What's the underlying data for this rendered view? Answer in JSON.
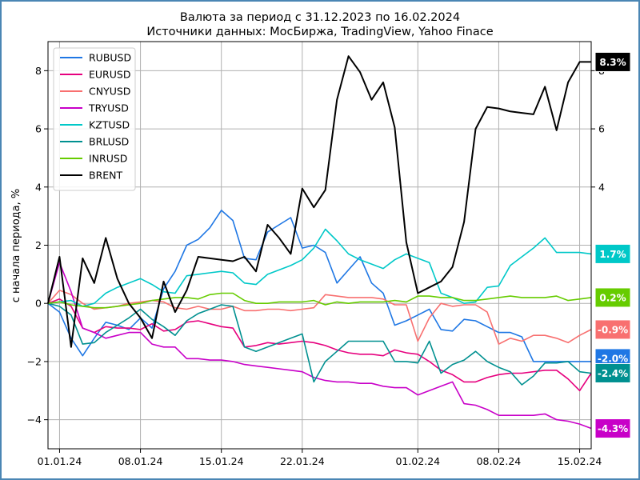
{
  "chart_data": {
    "type": "line",
    "title": "Валюта за период с 31.12.2023 по 16.02.2024",
    "subtitle": "Источники данных: МосБиржа, TradingView, Yahoo Finace",
    "xlabel": "",
    "ylabel": "с начала периода, %",
    "ylim": [
      -5,
      9
    ],
    "yticks": [
      -4,
      -2,
      0,
      2,
      4,
      6,
      8
    ],
    "ytick_labels": [
      "−4",
      "−2",
      "0",
      "2",
      "4",
      "6",
      "8"
    ],
    "right_yticks": [
      4,
      6,
      8
    ],
    "right_ytick_labels": [
      "4",
      "6",
      "8"
    ],
    "grid": true,
    "legend_position": "top-left",
    "x_days": [
      0,
      0.5,
      1,
      1.5,
      2,
      2.5,
      3,
      3.5,
      4,
      4.5,
      5,
      5.5,
      6,
      6.5,
      7,
      7.5,
      8,
      8.5,
      9,
      9.5,
      10,
      10.5,
      11,
      11.5,
      12,
      12.5,
      13,
      13.5,
      14,
      14.5,
      15,
      15.5,
      16,
      16.5,
      17,
      17.5,
      18,
      18.5,
      19,
      19.5,
      20,
      20.5,
      21,
      21.5,
      22,
      22.5,
      23,
      23.5,
      24,
      24.5,
      25,
      25.5,
      26,
      26.5,
      27,
      27.5,
      28,
      28.5,
      29,
      29.5,
      30,
      30.5,
      31,
      31.5,
      32,
      32.5,
      33,
      33.5,
      34,
      34.5,
      35,
      35.5,
      36,
      36.5,
      37,
      37.5,
      38,
      38.5,
      39,
      39.5,
      40,
      40.5,
      41,
      41.5,
      42,
      42.5,
      43,
      43.5,
      44,
      44.5,
      45,
      45.5,
      46,
      46.5,
      47
    ],
    "xticks": [
      1,
      8,
      15,
      22,
      32,
      39,
      46
    ],
    "xtick_labels": [
      "01.01.24",
      "08.01.24",
      "15.01.24",
      "22.01.24",
      "01.02.24",
      "08.02.24",
      "15.02.24"
    ],
    "series": [
      {
        "name": "RUBUSD",
        "color": "#1f77e4",
        "last_label": "-2.0%",
        "x": [
          0,
          1,
          2,
          3,
          4,
          5,
          6,
          7,
          8,
          9,
          10,
          11,
          12,
          13,
          14,
          15,
          16,
          17,
          18,
          19,
          20,
          21,
          22,
          23,
          24,
          25,
          26,
          27,
          28,
          29,
          30,
          31,
          32,
          33,
          34,
          35,
          36,
          37,
          38,
          39,
          40,
          41,
          42,
          43,
          44,
          45,
          46,
          47
        ],
        "values": [
          0,
          -0.3,
          -1.2,
          -1.8,
          -1.2,
          -0.65,
          -0.75,
          -0.9,
          -0.5,
          -0.85,
          0.5,
          1.1,
          2.0,
          2.2,
          2.6,
          3.2,
          2.85,
          1.55,
          1.5,
          2.45,
          2.7,
          2.95,
          1.9,
          2.0,
          1.75,
          0.7,
          1.15,
          1.6,
          0.7,
          0.35,
          -0.75,
          -0.6,
          -0.4,
          -0.2,
          -0.9,
          -0.95,
          -0.55,
          -0.6,
          -0.8,
          -1.0,
          -1.0,
          -1.15,
          -2.0,
          -2.0,
          -2.0,
          -2.0,
          -2.0,
          -2.0
        ]
      },
      {
        "name": "EURUSD",
        "color": "#e6007e",
        "last_label": "-2.4%",
        "x": [
          0,
          1,
          2,
          3,
          4,
          5,
          6,
          7,
          8,
          9,
          10,
          11,
          12,
          13,
          14,
          15,
          16,
          17,
          18,
          19,
          20,
          21,
          22,
          23,
          24,
          25,
          26,
          27,
          28,
          29,
          30,
          31,
          32,
          33,
          34,
          35,
          36,
          37,
          38,
          39,
          40,
          41,
          42,
          43,
          44,
          45,
          46,
          47
        ],
        "values": [
          0,
          0.15,
          -0.1,
          -0.85,
          -1.0,
          -0.8,
          -0.85,
          -0.85,
          -0.9,
          -0.7,
          -0.95,
          -0.9,
          -0.65,
          -0.6,
          -0.7,
          -0.8,
          -0.85,
          -1.5,
          -1.45,
          -1.35,
          -1.4,
          -1.35,
          -1.3,
          -1.35,
          -1.45,
          -1.6,
          -1.7,
          -1.75,
          -1.75,
          -1.8,
          -1.6,
          -1.7,
          -1.75,
          -2.0,
          -2.3,
          -2.45,
          -2.7,
          -2.7,
          -2.55,
          -2.45,
          -2.4,
          -2.4,
          -2.35,
          -2.3,
          -2.3,
          -2.6,
          -3.0,
          -2.4
        ]
      },
      {
        "name": "CNYUSD",
        "color": "#f87070",
        "last_label": "-0.9%",
        "x": [
          0,
          1,
          2,
          3,
          4,
          5,
          6,
          7,
          8,
          9,
          10,
          11,
          12,
          13,
          14,
          15,
          16,
          17,
          18,
          19,
          20,
          21,
          22,
          23,
          24,
          25,
          26,
          27,
          28,
          29,
          30,
          31,
          32,
          33,
          34,
          35,
          36,
          37,
          38,
          39,
          40,
          41,
          42,
          43,
          44,
          45,
          46,
          47
        ],
        "values": [
          0,
          0.45,
          0.3,
          0.0,
          -0.2,
          -0.15,
          -0.1,
          0.0,
          0.05,
          0.1,
          0.05,
          -0.15,
          -0.2,
          -0.1,
          -0.2,
          -0.2,
          -0.1,
          -0.25,
          -0.25,
          -0.2,
          -0.2,
          -0.25,
          -0.2,
          -0.15,
          0.3,
          0.25,
          0.2,
          0.2,
          0.2,
          0.15,
          -0.05,
          -0.05,
          -1.3,
          -0.5,
          0.0,
          -0.1,
          -0.05,
          -0.05,
          -0.3,
          -1.4,
          -1.2,
          -1.3,
          -1.1,
          -1.1,
          -1.2,
          -1.35,
          -1.1,
          -0.9
        ]
      },
      {
        "name": "TRYUSD",
        "color": "#c800c8",
        "last_label": "-4.3%",
        "x": [
          0,
          1,
          2,
          3,
          4,
          5,
          6,
          7,
          8,
          9,
          10,
          11,
          12,
          13,
          14,
          15,
          16,
          17,
          18,
          19,
          20,
          21,
          22,
          23,
          24,
          25,
          26,
          27,
          28,
          29,
          30,
          31,
          32,
          33,
          34,
          35,
          36,
          37,
          38,
          39,
          40,
          41,
          42,
          43,
          44,
          45,
          46,
          47
        ],
        "values": [
          0,
          1.4,
          0.4,
          -0.85,
          -1.0,
          -1.2,
          -1.1,
          -1.0,
          -1.0,
          -1.4,
          -1.5,
          -1.5,
          -1.9,
          -1.9,
          -1.95,
          -1.95,
          -2.0,
          -2.1,
          -2.15,
          -2.2,
          -2.25,
          -2.3,
          -2.35,
          -2.55,
          -2.65,
          -2.7,
          -2.7,
          -2.75,
          -2.75,
          -2.85,
          -2.9,
          -2.9,
          -3.15,
          -3.0,
          -2.85,
          -2.7,
          -3.45,
          -3.5,
          -3.65,
          -3.85,
          -3.85,
          -3.85,
          -3.85,
          -3.8,
          -4.0,
          -4.05,
          -4.15,
          -4.3
        ]
      },
      {
        "name": "KZTUSD",
        "color": "#00c8c8",
        "last_label": "1.7%",
        "x": [
          0,
          1,
          2,
          3,
          4,
          5,
          6,
          7,
          8,
          9,
          10,
          11,
          12,
          13,
          14,
          15,
          16,
          17,
          18,
          19,
          20,
          21,
          22,
          23,
          24,
          25,
          26,
          27,
          28,
          29,
          30,
          31,
          32,
          33,
          34,
          35,
          36,
          37,
          38,
          39,
          40,
          41,
          42,
          43,
          44,
          45,
          46,
          47
        ],
        "values": [
          0,
          0.05,
          0.1,
          -0.1,
          0.0,
          0.35,
          0.55,
          0.7,
          0.85,
          0.65,
          0.4,
          0.35,
          0.95,
          1.0,
          1.05,
          1.1,
          1.05,
          0.7,
          0.65,
          1.0,
          1.15,
          1.3,
          1.5,
          1.9,
          2.55,
          2.15,
          1.7,
          1.5,
          1.35,
          1.2,
          1.5,
          1.7,
          1.55,
          1.4,
          0.35,
          0.2,
          0.0,
          0.05,
          0.55,
          0.6,
          1.3,
          1.6,
          1.9,
          2.25,
          1.75,
          1.75,
          1.75,
          1.7
        ]
      },
      {
        "name": "BRLUSD",
        "color": "#009090",
        "last_label": "-2.4%",
        "x": [
          0,
          1,
          2,
          3,
          4,
          5,
          6,
          7,
          8,
          9,
          10,
          11,
          12,
          13,
          14,
          15,
          16,
          17,
          18,
          19,
          20,
          21,
          22,
          23,
          24,
          25,
          26,
          27,
          28,
          29,
          30,
          31,
          32,
          33,
          34,
          35,
          36,
          37,
          38,
          39,
          40,
          41,
          42,
          43,
          44,
          45,
          46,
          47
        ],
        "values": [
          0,
          -0.1,
          -0.4,
          -1.4,
          -1.35,
          -1.0,
          -0.75,
          -0.5,
          -0.2,
          -0.55,
          -0.8,
          -1.1,
          -0.6,
          -0.35,
          -0.2,
          -0.05,
          -0.1,
          -1.5,
          -1.65,
          -1.5,
          -1.35,
          -1.2,
          -1.05,
          -2.7,
          -2.0,
          -1.65,
          -1.3,
          -1.3,
          -1.3,
          -1.3,
          -2.0,
          -2.0,
          -2.05,
          -1.3,
          -2.4,
          -2.1,
          -1.95,
          -1.65,
          -2.0,
          -2.2,
          -2.35,
          -2.8,
          -2.5,
          -2.05,
          -2.05,
          -2.0,
          -2.35,
          -2.4
        ]
      },
      {
        "name": "INRUSD",
        "color": "#66cc00",
        "last_label": "0.2%",
        "x": [
          0,
          1,
          2,
          3,
          4,
          5,
          6,
          7,
          8,
          9,
          10,
          11,
          12,
          13,
          14,
          15,
          16,
          17,
          18,
          19,
          20,
          21,
          22,
          23,
          24,
          25,
          26,
          27,
          28,
          29,
          30,
          31,
          32,
          33,
          34,
          35,
          36,
          37,
          38,
          39,
          40,
          41,
          42,
          43,
          44,
          45,
          46,
          47
        ],
        "values": [
          0,
          0.05,
          -0.05,
          -0.1,
          -0.15,
          -0.15,
          -0.1,
          -0.05,
          0.0,
          0.1,
          0.15,
          0.2,
          0.2,
          0.15,
          0.3,
          0.35,
          0.35,
          0.1,
          0.0,
          0.0,
          0.05,
          0.05,
          0.05,
          0.1,
          -0.05,
          0.05,
          0.0,
          0.05,
          0.05,
          0.05,
          0.1,
          0.05,
          0.25,
          0.25,
          0.2,
          0.2,
          0.1,
          0.1,
          0.15,
          0.2,
          0.25,
          0.2,
          0.2,
          0.2,
          0.25,
          0.1,
          0.15,
          0.2
        ]
      },
      {
        "name": "BRENT",
        "color": "#000000",
        "last_label": "8.3%",
        "x": [
          0,
          1,
          2,
          3,
          4,
          5,
          6,
          7,
          8,
          9,
          10,
          11,
          12,
          13,
          14,
          15,
          16,
          17,
          18,
          19,
          20,
          21,
          22,
          23,
          24,
          25,
          26,
          27,
          28,
          29,
          30,
          31,
          32,
          33,
          34,
          35,
          36,
          37,
          38,
          39,
          40,
          41,
          42,
          43,
          44,
          45,
          46,
          47
        ],
        "values": [
          0,
          1.6,
          -1.5,
          1.55,
          0.7,
          2.25,
          0.85,
          0.0,
          -0.5,
          -1.2,
          0.75,
          -0.3,
          0.45,
          1.6,
          1.55,
          1.5,
          1.45,
          1.6,
          1.1,
          2.7,
          2.25,
          1.7,
          3.95,
          3.3,
          3.9,
          7.0,
          8.5,
          7.95,
          7.0,
          7.6,
          6.05,
          2.1,
          0.35,
          0.55,
          0.75,
          1.25,
          2.8,
          6.0,
          6.75,
          6.7,
          6.6,
          6.55,
          6.5,
          7.45,
          5.95,
          7.6,
          8.3,
          8.3
        ]
      }
    ]
  }
}
